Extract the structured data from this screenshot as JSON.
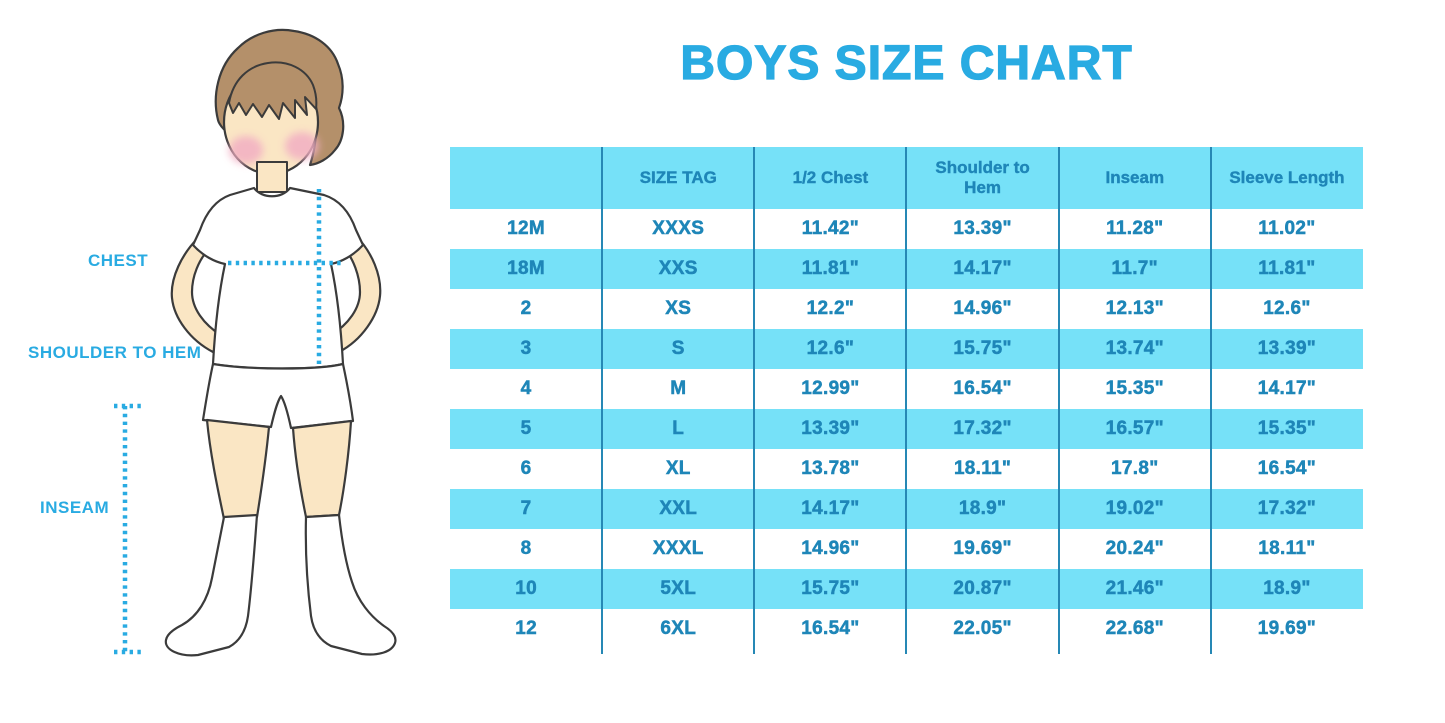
{
  "title": "BOYS SIZE CHART",
  "colors": {
    "accent_blue": "#29ABE2",
    "table_fill_blue": "#76E1F8",
    "table_text_blue": "#1E86B8",
    "table_line_blue": "#2688B5",
    "skin": "#FAE6C4",
    "hair": "#B4906A",
    "cheek": "#F2AFC3"
  },
  "figure": {
    "illustration": "boy-in-tshirt-shorts-and-socks",
    "labels": {
      "chest": "CHEST",
      "shoulder_to_hem": "SHOULDER TO HEM",
      "inseam": "INSEAM"
    }
  },
  "chart_data": {
    "type": "table",
    "title": "BOYS SIZE CHART",
    "columns": [
      "",
      "SIZE TAG",
      "1/2 Chest",
      "Shoulder to Hem",
      "Inseam",
      "Sleeve Length"
    ],
    "rows": [
      [
        "12M",
        "XXXS",
        "11.42\"",
        "13.39\"",
        "11.28\"",
        "11.02\""
      ],
      [
        "18M",
        "XXS",
        "11.81\"",
        "14.17\"",
        "11.7\"",
        "11.81\""
      ],
      [
        "2",
        "XS",
        "12.2\"",
        "14.96\"",
        "12.13\"",
        "12.6\""
      ],
      [
        "3",
        "S",
        "12.6\"",
        "15.75\"",
        "13.74\"",
        "13.39\""
      ],
      [
        "4",
        "M",
        "12.99\"",
        "16.54\"",
        "15.35\"",
        "14.17\""
      ],
      [
        "5",
        "L",
        "13.39\"",
        "17.32\"",
        "16.57\"",
        "15.35\""
      ],
      [
        "6",
        "XL",
        "13.78\"",
        "18.11\"",
        "17.8\"",
        "16.54\""
      ],
      [
        "7",
        "XXL",
        "14.17\"",
        "18.9\"",
        "19.02\"",
        "17.32\""
      ],
      [
        "8",
        "XXXL",
        "14.96\"",
        "19.69\"",
        "20.24\"",
        "18.11\""
      ],
      [
        "10",
        "5XL",
        "15.75\"",
        "20.87\"",
        "21.46\"",
        "18.9\""
      ],
      [
        "12",
        "6XL",
        "16.54\"",
        "22.05\"",
        "22.68\"",
        "19.69\""
      ]
    ],
    "stripe_pattern": "alternating white and light-blue rows starting white",
    "notes": "measurements in inches; guide figure shows chest, shoulder-to-hem and inseam reference lines"
  }
}
